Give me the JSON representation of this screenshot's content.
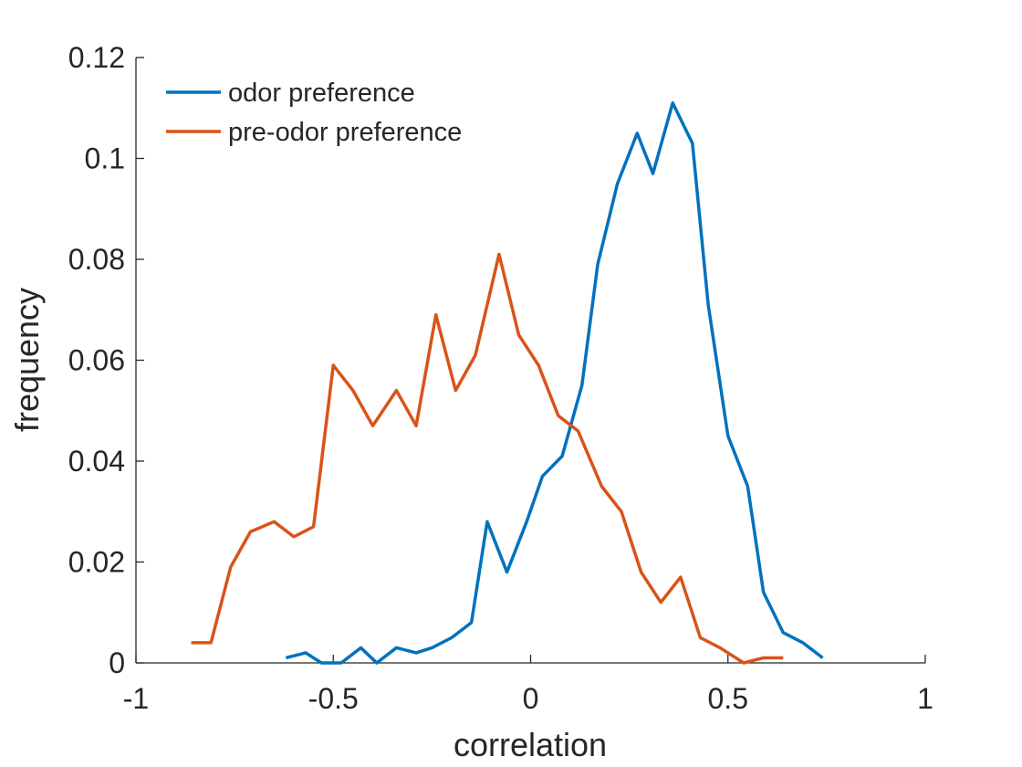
{
  "chart_data": {
    "type": "line",
    "xlabel": "correlation",
    "ylabel": "frequency",
    "xlim": [
      -1,
      1
    ],
    "ylim": [
      0,
      0.12
    ],
    "xticks": [
      -1,
      -0.5,
      0,
      0.5,
      1
    ],
    "yticks": [
      0,
      0.02,
      0.04,
      0.06,
      0.08,
      0.1,
      0.12
    ],
    "legend": "upper left",
    "series": [
      {
        "name": "odor preference",
        "color": "#0072BD",
        "x": [
          -0.62,
          -0.57,
          -0.53,
          -0.48,
          -0.43,
          -0.39,
          -0.34,
          -0.29,
          -0.25,
          -0.2,
          -0.15,
          -0.11,
          -0.06,
          -0.01,
          0.03,
          0.08,
          0.13,
          0.17,
          0.22,
          0.27,
          0.31,
          0.36,
          0.41,
          0.45,
          0.5,
          0.55,
          0.59,
          0.64,
          0.69,
          0.74
        ],
        "values": [
          0.001,
          0.002,
          0,
          0,
          0.003,
          0,
          0.003,
          0.002,
          0.003,
          0.005,
          0.008,
          0.028,
          0.018,
          0.028,
          0.037,
          0.041,
          0.055,
          0.079,
          0.095,
          0.105,
          0.097,
          0.111,
          0.103,
          0.071,
          0.045,
          0.035,
          0.014,
          0.006,
          0.004,
          0.001
        ]
      },
      {
        "name": "pre-odor preference",
        "color": "#D95319",
        "x": [
          -0.86,
          -0.81,
          -0.76,
          -0.71,
          -0.65,
          -0.6,
          -0.55,
          -0.5,
          -0.45,
          -0.4,
          -0.34,
          -0.29,
          -0.24,
          -0.19,
          -0.14,
          -0.08,
          -0.03,
          0.02,
          0.07,
          0.12,
          0.18,
          0.23,
          0.28,
          0.33,
          0.38,
          0.43,
          0.48,
          0.54,
          0.59,
          0.64
        ],
        "values": [
          0.004,
          0.004,
          0.019,
          0.026,
          0.028,
          0.025,
          0.027,
          0.059,
          0.054,
          0.047,
          0.054,
          0.047,
          0.069,
          0.054,
          0.061,
          0.081,
          0.065,
          0.059,
          0.049,
          0.046,
          0.035,
          0.03,
          0.018,
          0.012,
          0.017,
          0.005,
          0.003,
          0,
          0.001,
          0.001
        ]
      }
    ]
  }
}
